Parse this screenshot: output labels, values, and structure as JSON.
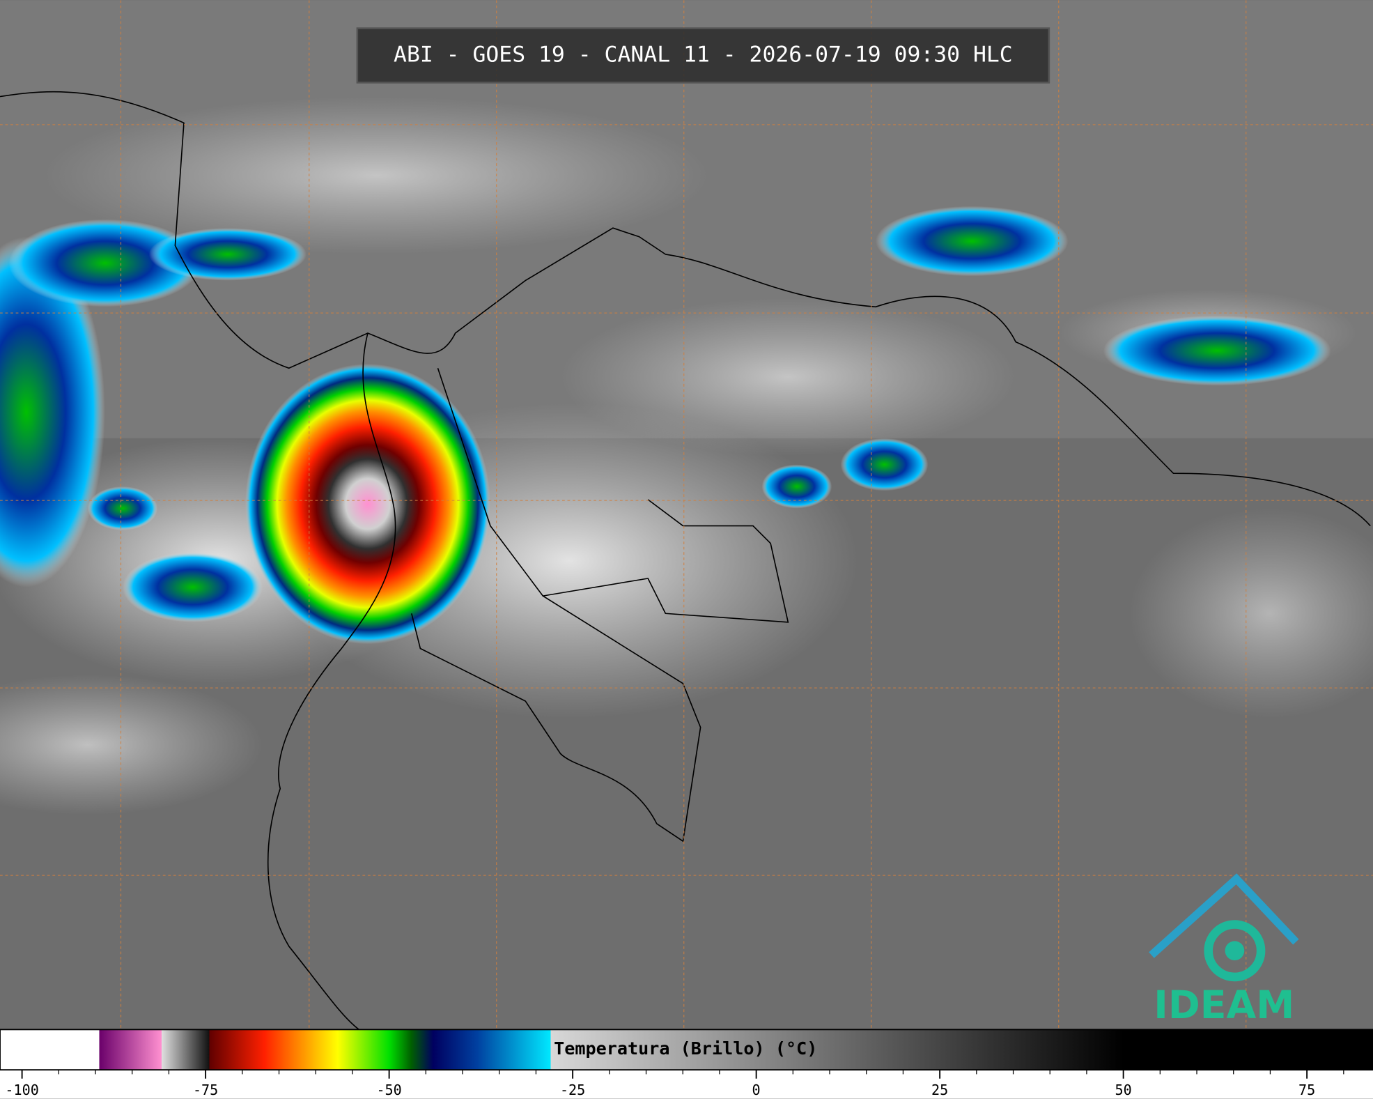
{
  "header": {
    "title": "ABI - GOES 19 - CANAL 11 - 2026-07-19 09:30 HLC"
  },
  "logo": {
    "text": "IDEAM"
  },
  "colorbar": {
    "label": "Temperatura (Brillo) (°C)",
    "xlim": [
      -103,
      84
    ],
    "ticks": [
      -100,
      -75,
      -50,
      -25,
      0,
      25,
      50,
      75
    ],
    "minor_tick_step": 5,
    "stops": [
      {
        "value": -103,
        "color": "#ffffff"
      },
      {
        "value": -89.5,
        "color": "#ffffff"
      },
      {
        "value": -89.5,
        "color": "#6a006a"
      },
      {
        "value": -81,
        "color": "#ff90d0"
      },
      {
        "value": -81,
        "color": "#e0e0e0"
      },
      {
        "value": -74.5,
        "color": "#111111"
      },
      {
        "value": -74.5,
        "color": "#600000"
      },
      {
        "value": -67,
        "color": "#ff2000"
      },
      {
        "value": -62,
        "color": "#ff9000"
      },
      {
        "value": -57,
        "color": "#ffff00"
      },
      {
        "value": -50,
        "color": "#00e000"
      },
      {
        "value": -47,
        "color": "#006000"
      },
      {
        "value": -44,
        "color": "#000060"
      },
      {
        "value": -38,
        "color": "#0040a0"
      },
      {
        "value": -28,
        "color": "#00e8ff"
      },
      {
        "value": -28,
        "color": "#d8d8d8"
      },
      {
        "value": 50,
        "color": "#000000"
      },
      {
        "value": 84,
        "color": "#000000"
      }
    ]
  }
}
